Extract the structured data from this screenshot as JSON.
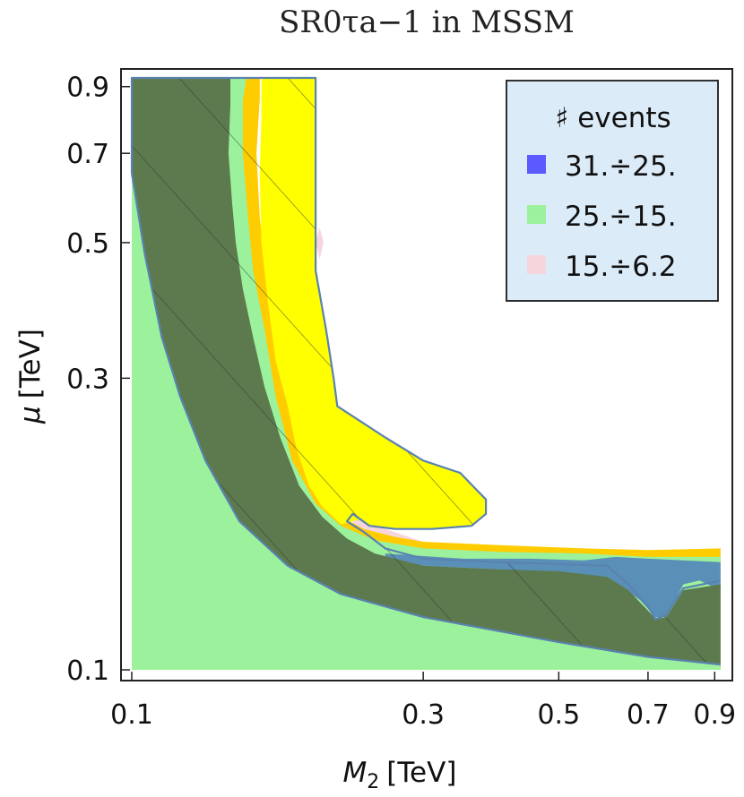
{
  "chart_data": {
    "type": "contour",
    "title": "SR0τa−1 in MSSM",
    "xlabel": {
      "symbol": "M",
      "subscript": "2",
      "unit": "[TeV]"
    },
    "ylabel": {
      "symbol": "μ",
      "unit": "[TeV]"
    },
    "x_scale": "log",
    "y_scale": "log",
    "xlim": [
      0.1,
      0.93
    ],
    "ylim": [
      0.1,
      0.93
    ],
    "x_ticks": [
      {
        "value": 0.1,
        "label": "0.1"
      },
      {
        "value": 0.3,
        "label": "0.3"
      },
      {
        "value": 0.5,
        "label": "0.5"
      },
      {
        "value": 0.7,
        "label": "0.7"
      },
      {
        "value": 0.9,
        "label": "0.9"
      }
    ],
    "y_ticks": [
      {
        "value": 0.1,
        "label": "0.1"
      },
      {
        "value": 0.3,
        "label": "0.3"
      },
      {
        "value": 0.5,
        "label": "0.5"
      },
      {
        "value": 0.7,
        "label": "0.7"
      },
      {
        "value": 0.9,
        "label": "0.9"
      }
    ],
    "legend": {
      "title": "♯ events",
      "placement": "top-right",
      "background": "#dcebf8",
      "entries": [
        {
          "label": "31.÷25.",
          "color": "#5a5aff"
        },
        {
          "label": "25.÷15.",
          "color": "#9cf29c"
        },
        {
          "label": "15.÷6.2",
          "color": "#f7d5dc"
        }
      ]
    },
    "regions": [
      {
        "name": "orange",
        "color": "#ff8400",
        "points": [
          [
            0.1,
            0.1
          ],
          [
            0.1,
            0.65
          ],
          [
            0.105,
            0.48
          ],
          [
            0.112,
            0.35
          ],
          [
            0.12,
            0.28
          ],
          [
            0.132,
            0.22
          ],
          [
            0.15,
            0.175
          ],
          [
            0.18,
            0.148
          ],
          [
            0.22,
            0.133
          ],
          [
            0.3,
            0.122
          ],
          [
            0.5,
            0.111
          ],
          [
            0.7,
            0.105
          ],
          [
            0.92,
            0.102
          ],
          [
            0.92,
            0.1
          ]
        ]
      },
      {
        "name": "pink",
        "color": "#f7d5dc",
        "points": [
          [
            0.23,
            0.18
          ],
          [
            0.26,
            0.17
          ],
          [
            0.3,
            0.162
          ],
          [
            0.4,
            0.158
          ],
          [
            0.5,
            0.157
          ],
          [
            0.6,
            0.156
          ],
          [
            0.7,
            0.156
          ],
          [
            0.92,
            0.158
          ],
          [
            0.92,
            0.148
          ],
          [
            0.7,
            0.148
          ],
          [
            0.5,
            0.148
          ],
          [
            0.4,
            0.148
          ],
          [
            0.3,
            0.15
          ],
          [
            0.26,
            0.155
          ],
          [
            0.23,
            0.17
          ]
        ]
      },
      {
        "name": "pink-speck",
        "color": "#f7d5dc",
        "points": [
          [
            0.2,
            0.5
          ],
          [
            0.203,
            0.53
          ],
          [
            0.206,
            0.5
          ],
          [
            0.203,
            0.47
          ]
        ]
      },
      {
        "name": "yellow-outer",
        "color": "#ffcc00",
        "points": [
          [
            0.1,
            0.93
          ],
          [
            0.162,
            0.93
          ],
          [
            0.162,
            0.86
          ],
          [
            0.16,
            0.7
          ],
          [
            0.162,
            0.55
          ],
          [
            0.167,
            0.42
          ],
          [
            0.172,
            0.34
          ],
          [
            0.18,
            0.27
          ],
          [
            0.192,
            0.22
          ],
          [
            0.205,
            0.19
          ],
          [
            0.22,
            0.178
          ],
          [
            0.24,
            0.17
          ],
          [
            0.27,
            0.165
          ],
          [
            0.3,
            0.162
          ],
          [
            0.4,
            0.16
          ],
          [
            0.55,
            0.158
          ],
          [
            0.7,
            0.157
          ],
          [
            0.92,
            0.158
          ],
          [
            0.92,
            0.1
          ],
          [
            0.1,
            0.1
          ]
        ]
      },
      {
        "name": "light-green",
        "color": "#9cf29c",
        "points": [
          [
            0.1,
            0.93
          ],
          [
            0.154,
            0.93
          ],
          [
            0.152,
            0.85
          ],
          [
            0.152,
            0.7
          ],
          [
            0.155,
            0.55
          ],
          [
            0.158,
            0.45
          ],
          [
            0.165,
            0.36
          ],
          [
            0.172,
            0.28
          ],
          [
            0.183,
            0.22
          ],
          [
            0.2,
            0.187
          ],
          [
            0.22,
            0.172
          ],
          [
            0.25,
            0.163
          ],
          [
            0.3,
            0.158
          ],
          [
            0.4,
            0.156
          ],
          [
            0.55,
            0.155
          ],
          [
            0.7,
            0.153
          ],
          [
            0.92,
            0.153
          ],
          [
            0.92,
            0.1
          ],
          [
            0.1,
            0.1
          ]
        ]
      },
      {
        "name": "yellow-band",
        "color": "#ffff00",
        "points": [
          [
            0.163,
            0.93
          ],
          [
            0.2,
            0.93
          ],
          [
            0.2,
            0.45
          ],
          [
            0.208,
            0.36
          ],
          [
            0.214,
            0.3
          ],
          [
            0.217,
            0.27
          ],
          [
            0.23,
            0.26
          ],
          [
            0.26,
            0.24
          ],
          [
            0.3,
            0.22
          ],
          [
            0.345,
            0.21
          ],
          [
            0.365,
            0.198
          ],
          [
            0.38,
            0.19
          ],
          [
            0.38,
            0.18
          ],
          [
            0.36,
            0.172
          ],
          [
            0.31,
            0.17
          ],
          [
            0.27,
            0.17
          ],
          [
            0.245,
            0.172
          ],
          [
            0.235,
            0.176
          ],
          [
            0.22,
            0.173
          ],
          [
            0.205,
            0.185
          ],
          [
            0.195,
            0.2
          ],
          [
            0.186,
            0.23
          ],
          [
            0.18,
            0.27
          ],
          [
            0.172,
            0.32
          ],
          [
            0.167,
            0.4
          ],
          [
            0.163,
            0.5
          ],
          [
            0.162,
            0.65
          ],
          [
            0.163,
            0.8
          ]
        ]
      },
      {
        "name": "yellow-lower-strip",
        "color": "#ffff00",
        "points": [
          [
            0.45,
            0.151
          ],
          [
            0.5,
            0.15
          ],
          [
            0.55,
            0.15
          ],
          [
            0.6,
            0.149
          ],
          [
            0.6,
            0.146
          ],
          [
            0.55,
            0.145
          ],
          [
            0.5,
            0.146
          ],
          [
            0.45,
            0.147
          ]
        ]
      },
      {
        "name": "blue-strip",
        "color": "#5a8fb8",
        "points": [
          [
            0.26,
            0.155
          ],
          [
            0.35,
            0.152
          ],
          [
            0.45,
            0.152
          ],
          [
            0.55,
            0.151
          ],
          [
            0.62,
            0.153
          ],
          [
            0.7,
            0.152
          ],
          [
            0.8,
            0.151
          ],
          [
            0.92,
            0.15
          ],
          [
            0.92,
            0.135
          ],
          [
            0.85,
            0.14
          ],
          [
            0.8,
            0.138
          ],
          [
            0.75,
            0.122
          ],
          [
            0.72,
            0.122
          ],
          [
            0.68,
            0.13
          ],
          [
            0.6,
            0.142
          ],
          [
            0.5,
            0.144
          ],
          [
            0.4,
            0.146
          ],
          [
            0.3,
            0.148
          ],
          [
            0.26,
            0.15
          ]
        ]
      },
      {
        "name": "dark-green",
        "color": "#5c7a4e",
        "points": [
          [
            0.1,
            0.93
          ],
          [
            0.145,
            0.93
          ],
          [
            0.145,
            0.84
          ],
          [
            0.144,
            0.7
          ],
          [
            0.146,
            0.58
          ],
          [
            0.148,
            0.5
          ],
          [
            0.152,
            0.42
          ],
          [
            0.158,
            0.35
          ],
          [
            0.165,
            0.29
          ],
          [
            0.175,
            0.24
          ],
          [
            0.188,
            0.2
          ],
          [
            0.205,
            0.178
          ],
          [
            0.225,
            0.164
          ],
          [
            0.25,
            0.155
          ],
          [
            0.3,
            0.148
          ],
          [
            0.4,
            0.146
          ],
          [
            0.5,
            0.145
          ],
          [
            0.6,
            0.142
          ],
          [
            0.65,
            0.135
          ],
          [
            0.7,
            0.125
          ],
          [
            0.72,
            0.121
          ],
          [
            0.75,
            0.122
          ],
          [
            0.8,
            0.135
          ],
          [
            0.92,
            0.138
          ],
          [
            0.92,
            0.102
          ],
          [
            0.7,
            0.105
          ],
          [
            0.5,
            0.111
          ],
          [
            0.3,
            0.122
          ],
          [
            0.22,
            0.133
          ],
          [
            0.18,
            0.148
          ],
          [
            0.15,
            0.175
          ],
          [
            0.132,
            0.22
          ],
          [
            0.12,
            0.28
          ],
          [
            0.112,
            0.35
          ],
          [
            0.105,
            0.48
          ],
          [
            0.1,
            0.65
          ]
        ]
      }
    ],
    "outlines": [
      {
        "name": "excluded-contour",
        "color": "#5a82b0",
        "points": [
          [
            0.1,
            0.65
          ],
          [
            0.1,
            0.93
          ],
          [
            0.2,
            0.93
          ],
          [
            0.2,
            0.45
          ],
          [
            0.208,
            0.36
          ],
          [
            0.214,
            0.3
          ],
          [
            0.217,
            0.27
          ],
          [
            0.23,
            0.26
          ],
          [
            0.26,
            0.24
          ],
          [
            0.3,
            0.22
          ],
          [
            0.345,
            0.21
          ],
          [
            0.365,
            0.198
          ],
          [
            0.38,
            0.19
          ],
          [
            0.38,
            0.18
          ],
          [
            0.36,
            0.172
          ],
          [
            0.31,
            0.17
          ],
          [
            0.27,
            0.17
          ],
          [
            0.245,
            0.172
          ],
          [
            0.23,
            0.18
          ],
          [
            0.225,
            0.175
          ],
          [
            0.24,
            0.168
          ],
          [
            0.26,
            0.158
          ],
          [
            0.3,
            0.152
          ],
          [
            0.4,
            0.15
          ],
          [
            0.5,
            0.149
          ],
          [
            0.6,
            0.148
          ],
          [
            0.65,
            0.138
          ],
          [
            0.7,
            0.127
          ],
          [
            0.72,
            0.121
          ],
          [
            0.75,
            0.123
          ],
          [
            0.8,
            0.136
          ],
          [
            0.92,
            0.14
          ]
        ]
      },
      {
        "name": "lower-boundary",
        "color": "#5a82b0",
        "points": [
          [
            0.1,
            0.65
          ],
          [
            0.105,
            0.48
          ],
          [
            0.112,
            0.35
          ],
          [
            0.12,
            0.28
          ],
          [
            0.132,
            0.22
          ],
          [
            0.15,
            0.175
          ],
          [
            0.18,
            0.148
          ],
          [
            0.22,
            0.133
          ],
          [
            0.3,
            0.122
          ],
          [
            0.5,
            0.111
          ],
          [
            0.7,
            0.105
          ],
          [
            0.92,
            0.102
          ]
        ]
      }
    ],
    "hatched_region": "excluded-contour"
  }
}
